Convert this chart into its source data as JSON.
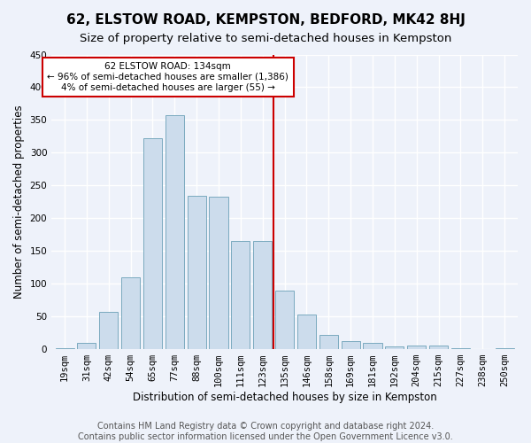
{
  "title": "62, ELSTOW ROAD, KEMPSTON, BEDFORD, MK42 8HJ",
  "subtitle": "Size of property relative to semi-detached houses in Kempston",
  "xlabel": "Distribution of semi-detached houses by size in Kempston",
  "ylabel": "Number of semi-detached properties",
  "categories": [
    "19sqm",
    "31sqm",
    "42sqm",
    "54sqm",
    "65sqm",
    "77sqm",
    "88sqm",
    "100sqm",
    "111sqm",
    "123sqm",
    "135sqm",
    "146sqm",
    "158sqm",
    "169sqm",
    "181sqm",
    "192sqm",
    "204sqm",
    "215sqm",
    "227sqm",
    "238sqm",
    "250sqm"
  ],
  "values": [
    2,
    10,
    57,
    110,
    322,
    357,
    234,
    233,
    165,
    165,
    90,
    53,
    22,
    12,
    10,
    4,
    6,
    6,
    2,
    0,
    2
  ],
  "bar_color": "#ccdcec",
  "bar_edge_color": "#7aaabf",
  "background_color": "#eef2fa",
  "grid_color": "#ffffff",
  "vline_x": 9.5,
  "vline_color": "#cc0000",
  "annotation_box_edge": "#cc0000",
  "footer_text": "Contains HM Land Registry data © Crown copyright and database right 2024.\nContains public sector information licensed under the Open Government Licence v3.0.",
  "ylim": [
    0,
    450
  ],
  "yticks": [
    0,
    50,
    100,
    150,
    200,
    250,
    300,
    350,
    400,
    450
  ],
  "title_fontsize": 11,
  "subtitle_fontsize": 9.5,
  "axis_label_fontsize": 8.5,
  "tick_fontsize": 7.5,
  "footer_fontsize": 7
}
